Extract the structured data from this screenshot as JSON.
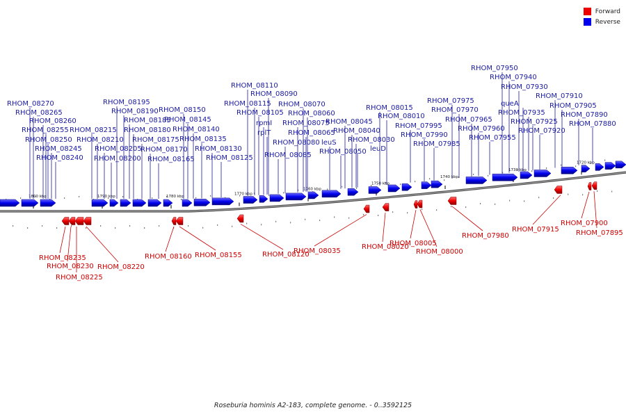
{
  "legend": {
    "forward_label": "Forward",
    "reverse_label": "Reverse",
    "forward_color": "#ff0000",
    "reverse_color": "#0000ff"
  },
  "caption": "Roseburia hominis A2-183, complete genome. - 0..3592125",
  "colors": {
    "forward_label": "#cc0000",
    "reverse_label": "#1a1aa0",
    "backbone": "#777777"
  },
  "ticks": [
    "1800 kbp",
    "1790 kbp",
    "1780 kbp",
    "1770 kbp",
    "1760 kbp",
    "1750 kbp",
    "1740 kbp",
    "1730 kbp",
    "1720 kbp"
  ],
  "reverse_genes": [
    "RHOM_08270",
    "RHOM_08265",
    "RHOM_08260",
    "RHOM_08255",
    "RHOM_08250",
    "RHOM_08245",
    "RHOM_08240",
    "RHOM_08215",
    "RHOM_08210",
    "RHOM_08205",
    "RHOM_08200",
    "RHOM_08195",
    "RHOM_08190",
    "RHOM_08185",
    "RHOM_08180",
    "RHOM_08175",
    "RHOM_08170",
    "RHOM_08165",
    "RHOM_08150",
    "RHOM_08145",
    "RHOM_08140",
    "RHOM_08135",
    "RHOM_08130",
    "RHOM_08125",
    "RHOM_08110",
    "RHOM_08115",
    "RHOM_08105",
    "rpmI",
    "rplT",
    "RHOM_08090",
    "RHOM_08085",
    "RHOM_08080",
    "RHOM_08075",
    "RHOM_08070",
    "RHOM_08065",
    "RHOM_08060",
    "leuS",
    "RHOM_08050",
    "RHOM_08045",
    "RHOM_08040",
    "RHOM_08030",
    "leuD",
    "RHOM_08015",
    "RHOM_08010",
    "RHOM_07995",
    "RHOM_07990",
    "RHOM_07985",
    "RHOM_07975",
    "RHOM_07970",
    "RHOM_07965",
    "RHOM_07960",
    "RHOM_07955",
    "RHOM_07950",
    "RHOM_07940",
    "RHOM_07930",
    "queA",
    "RHOM_07935",
    "RHOM_07925",
    "RHOM_07920",
    "RHOM_07910",
    "RHOM_07905",
    "RHOM_07890",
    "RHOM_07880"
  ],
  "forward_genes": [
    "RHOM_08235",
    "RHOM_08230",
    "RHOM_08225",
    "RHOM_08220",
    "RHOM_08160",
    "RHOM_08155",
    "RHOM_08120",
    "RHOM_08035",
    "RHOM_08020",
    "RHOM_08005",
    "RHOM_08000",
    "RHOM_07980",
    "RHOM_07915",
    "RHOM_07900",
    "RHOM_07895"
  ]
}
